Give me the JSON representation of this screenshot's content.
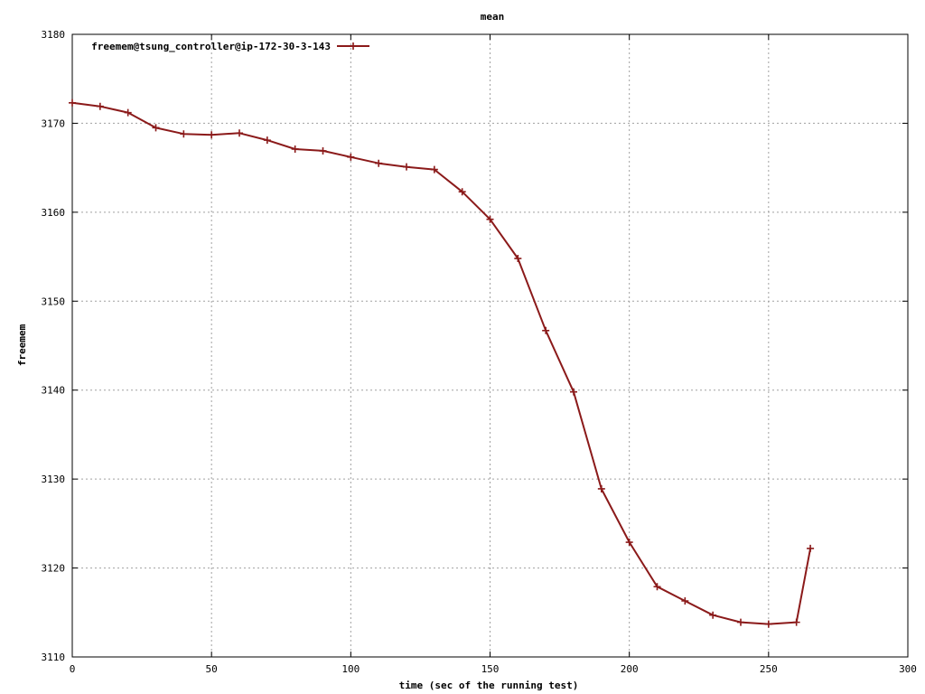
{
  "chart_data": {
    "type": "line",
    "title": "mean",
    "xlabel": "time (sec of the running test)",
    "ylabel": "freemem",
    "xlim": [
      0,
      300
    ],
    "ylim": [
      3110,
      3180
    ],
    "xticks": [
      0,
      50,
      100,
      150,
      200,
      250,
      300
    ],
    "yticks": [
      3110,
      3120,
      3130,
      3140,
      3150,
      3160,
      3170,
      3180
    ],
    "grid": true,
    "legend_position": "top-left",
    "series": [
      {
        "name": "freemem@tsung_controller@ip-172-30-3-143",
        "color": "#8b1a1a",
        "marker": "plus",
        "x": [
          0,
          10,
          20,
          30,
          40,
          50,
          60,
          70,
          80,
          90,
          100,
          110,
          120,
          130,
          140,
          150,
          160,
          170,
          180,
          190,
          200,
          210,
          220,
          230,
          240,
          250,
          260,
          265
        ],
        "y": [
          3172.3,
          3171.9,
          3171.2,
          3169.5,
          3168.8,
          3168.7,
          3168.9,
          3168.1,
          3167.1,
          3166.9,
          3166.2,
          3165.5,
          3165.1,
          3164.8,
          3162.3,
          3159.2,
          3154.8,
          3146.7,
          3139.8,
          3128.9,
          3122.9,
          3117.9,
          3116.3,
          3114.7,
          3113.9,
          3113.7,
          3113.9,
          3122.2
        ]
      }
    ]
  }
}
